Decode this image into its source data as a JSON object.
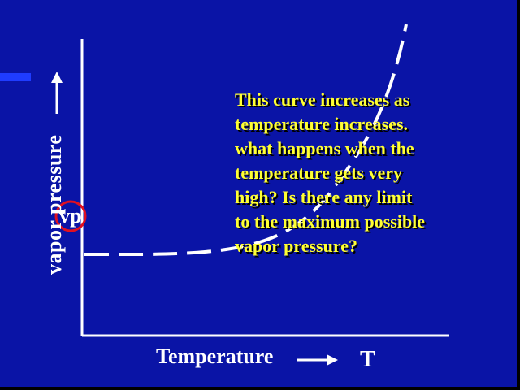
{
  "diagram": {
    "ylabel": "vapor pressure",
    "vp_label": "vp",
    "xlabel": "Temperature",
    "x_symbol": "T",
    "callout_lines": [
      "This curve increases as",
      "temperature increases.",
      "what happens when the",
      "temperature gets very",
      "high?  Is there any limit",
      "to the maximum possible",
      "vapor pressure?"
    ]
  },
  "colors": {
    "background": "#0a14a6",
    "axes": "#ffffff",
    "curve": "#ffffff",
    "callout_text": "#ffff33",
    "vp_circle": "#e01020",
    "accent_bar": "#1f3cff"
  }
}
